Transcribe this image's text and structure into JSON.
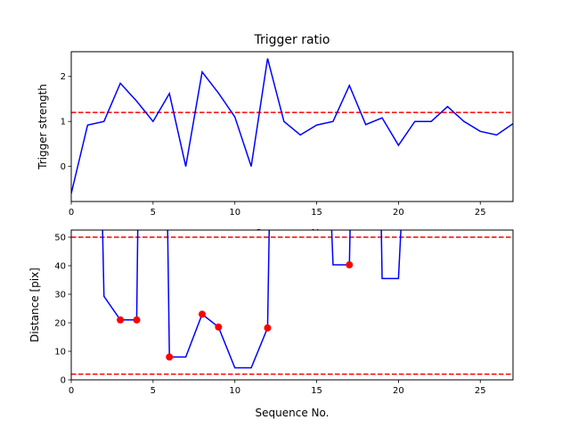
{
  "chart_data": [
    {
      "type": "line",
      "title": "Trigger ratio",
      "xlabel": "Sequence No.",
      "ylabel": "Trigger strength",
      "xlim": [
        0,
        27
      ],
      "ylim": [
        -0.78,
        2.55
      ],
      "xticks": [
        0,
        5,
        10,
        15,
        20,
        25
      ],
      "yticks": [
        0,
        1,
        2
      ],
      "grid": false,
      "line_color": "#0000ff",
      "threshold_color": "#ff0000",
      "thresholds": [
        1.2
      ],
      "series": [
        {
          "x": [
            0,
            1,
            2,
            3,
            4,
            5,
            6,
            7,
            8,
            9,
            10,
            11,
            12,
            13,
            14,
            15,
            16,
            17,
            18,
            19,
            20,
            21,
            22,
            23,
            24,
            25,
            26,
            27
          ],
          "values": [
            -0.6,
            0.92,
            1.0,
            1.85,
            1.45,
            1.0,
            1.62,
            0.0,
            2.1,
            1.63,
            1.1,
            0.0,
            2.4,
            1.0,
            0.7,
            0.92,
            1.0,
            1.8,
            0.93,
            1.08,
            0.47,
            1.0,
            1.0,
            1.33,
            1.0,
            0.78,
            0.7,
            0.95
          ]
        }
      ]
    },
    {
      "type": "line",
      "title": "",
      "xlabel": "Sequence No.",
      "ylabel": "Distance [pix]",
      "xlim": [
        0,
        27
      ],
      "ylim": [
        0,
        52.5
      ],
      "xticks": [
        0,
        5,
        10,
        15,
        20,
        25
      ],
      "yticks": [
        0,
        10,
        20,
        30,
        40,
        50
      ],
      "grid": false,
      "line_color": "#0000ff",
      "marker_color": "#ff0000",
      "threshold_color": "#ff0000",
      "thresholds": [
        50,
        2
      ],
      "series": [
        {
          "x": [
            1.85,
            2,
            3,
            4,
            4.1,
            null,
            5.85,
            6,
            7,
            8,
            9,
            10,
            11,
            12,
            12.15,
            null,
            15.8,
            16,
            17,
            17.1,
            null,
            18.9,
            19,
            20,
            20.3
          ],
          "values": [
            70,
            29.3,
            21,
            21,
            70,
            null,
            70,
            8,
            8,
            23,
            18.5,
            4.2,
            4.2,
            18.2,
            70,
            null,
            70,
            40.3,
            40.3,
            70,
            null,
            70,
            35.5,
            35.5,
            70
          ]
        }
      ],
      "markers": {
        "x": [
          3,
          4,
          6,
          8,
          9,
          12,
          17
        ],
        "values": [
          21,
          21,
          8,
          23,
          18.5,
          18.2,
          40.3
        ]
      }
    }
  ]
}
